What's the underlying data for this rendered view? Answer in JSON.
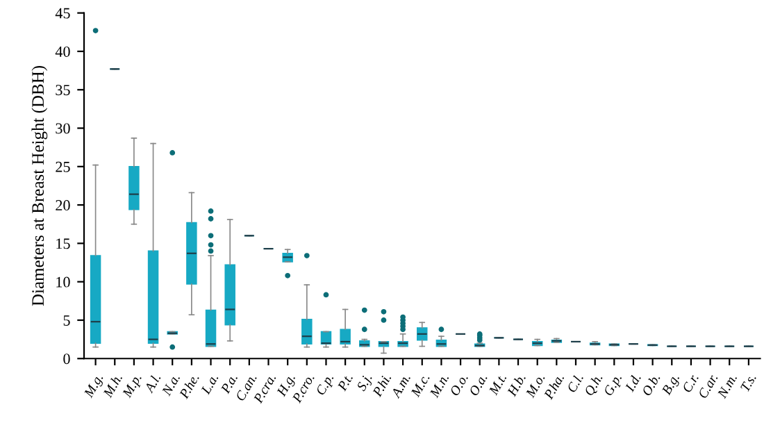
{
  "chart_data": {
    "type": "box",
    "ylabel": "Diameters at Breast Height (DBH)",
    "categories": [
      "M.g.",
      "M.h.",
      "M.p.",
      "A.l.",
      "N.a.",
      "P.he.",
      "L.a.",
      "P.a.",
      "C.an.",
      "P.cra.",
      "H.g.",
      "P.cro.",
      "C.p.",
      "P.t.",
      "S.j.",
      "P.hi.",
      "A.m.",
      "M.c.",
      "M.n.",
      "O.o.",
      "O.a.",
      "M.t.",
      "H.b.",
      "M.o.",
      "P.ha.",
      "C.l.",
      "Q.h.",
      "G.p.",
      "I.d.",
      "O.b.",
      "B.g.",
      "C.r.",
      "C.ar.",
      "N.m.",
      "T.s."
    ],
    "color": "#17a9c4",
    "ylim": [
      0,
      45
    ],
    "yticks": [
      0,
      5,
      10,
      15,
      20,
      25,
      30,
      35,
      40,
      45
    ],
    "grid": false,
    "legend": false,
    "boxes": [
      {
        "low": 1.5,
        "q1": 2,
        "median": 4.8,
        "q3": 13.4,
        "high": 25.2,
        "outliers": [
          42.7
        ]
      },
      {
        "low": 37.7,
        "q1": 37.7,
        "median": 37.7,
        "q3": 37.7,
        "high": 37.7
      },
      {
        "low": 17.5,
        "q1": 19.4,
        "median": 21.4,
        "q3": 25,
        "high": 28.7
      },
      {
        "low": 1.5,
        "q1": 2,
        "median": 2.5,
        "q3": 14,
        "high": 28
      },
      {
        "low": 3.2,
        "q1": 3.2,
        "median": 3.3,
        "q3": 3.5,
        "high": 3.5,
        "outliers": [
          1.5,
          26.8
        ]
      },
      {
        "low": 5.7,
        "q1": 9.7,
        "median": 13.7,
        "q3": 17.7,
        "high": 21.6
      },
      {
        "low": 1.6,
        "q1": 1.6,
        "median": 1.9,
        "q3": 6.3,
        "high": 13.4,
        "outliers": [
          14,
          14.8,
          16,
          18.2,
          19.2
        ]
      },
      {
        "low": 2.3,
        "q1": 4.4,
        "median": 6.4,
        "q3": 12.2,
        "high": 18.1
      },
      {
        "low": 16,
        "q1": 16,
        "median": 16,
        "q3": 16,
        "high": 16
      },
      {
        "low": 14.3,
        "q1": 14.3,
        "median": 14.3,
        "q3": 14.3,
        "high": 14.3
      },
      {
        "low": 12.6,
        "q1": 12.6,
        "median": 13.2,
        "q3": 13.7,
        "high": 14.2,
        "outliers": [
          10.8
        ]
      },
      {
        "low": 1.5,
        "q1": 1.9,
        "median": 2.9,
        "q3": 5.1,
        "high": 9.6,
        "outliers": [
          13.4
        ]
      },
      {
        "low": 1.5,
        "q1": 1.9,
        "median": 2,
        "q3": 3.5,
        "high": 3.5,
        "outliers": [
          8.3
        ]
      },
      {
        "low": 1.5,
        "q1": 1.9,
        "median": 2.2,
        "q3": 3.8,
        "high": 6.4
      },
      {
        "low": 1.6,
        "q1": 1.6,
        "median": 1.8,
        "q3": 2.3,
        "high": 2.5,
        "outliers": [
          3.8,
          6.3
        ]
      },
      {
        "low": 0.7,
        "q1": 1.6,
        "median": 2,
        "q3": 2.2,
        "high": 2.2,
        "outliers": [
          5,
          6.1
        ]
      },
      {
        "low": 1.6,
        "q1": 1.6,
        "median": 2,
        "q3": 2.2,
        "high": 3.2,
        "outliers": [
          3.8,
          4.2,
          4.6,
          5,
          5.4
        ]
      },
      {
        "low": 1.6,
        "q1": 2.4,
        "median": 3.2,
        "q3": 4,
        "high": 4.7
      },
      {
        "low": 1.6,
        "q1": 1.6,
        "median": 1.9,
        "q3": 2.4,
        "high": 2.9,
        "outliers": [
          3.8
        ]
      },
      {
        "low": 3.2,
        "q1": 3.2,
        "median": 3.2,
        "q3": 3.2,
        "high": 3.2
      },
      {
        "low": 1.6,
        "q1": 1.6,
        "median": 1.7,
        "q3": 1.9,
        "high": 2,
        "outliers": [
          2.4,
          2.7,
          3,
          3.2
        ]
      },
      {
        "low": 2.7,
        "q1": 2.7,
        "median": 2.7,
        "q3": 2.7,
        "high": 2.7
      },
      {
        "low": 2.5,
        "q1": 2.5,
        "median": 2.5,
        "q3": 2.5,
        "high": 2.5
      },
      {
        "low": 1.7,
        "q1": 1.7,
        "median": 2,
        "q3": 2.2,
        "high": 2.5
      },
      {
        "low": 2.1,
        "q1": 2.1,
        "median": 2.3,
        "q3": 2.4,
        "high": 2.6
      },
      {
        "low": 2.2,
        "q1": 2.2,
        "median": 2.2,
        "q3": 2.2,
        "high": 2.2
      },
      {
        "low": 1.8,
        "q1": 1.8,
        "median": 1.9,
        "q3": 2,
        "high": 2.2
      },
      {
        "low": 1.7,
        "q1": 1.7,
        "median": 1.8,
        "q3": 1.9,
        "high": 1.9
      },
      {
        "low": 1.9,
        "q1": 1.9,
        "median": 1.9,
        "q3": 1.9,
        "high": 1.9
      },
      {
        "low": 1.7,
        "q1": 1.7,
        "median": 1.75,
        "q3": 1.8,
        "high": 1.8
      },
      {
        "low": 1.6,
        "q1": 1.6,
        "median": 1.6,
        "q3": 1.6,
        "high": 1.6
      },
      {
        "low": 1.6,
        "q1": 1.6,
        "median": 1.6,
        "q3": 1.6,
        "high": 1.6
      },
      {
        "low": 1.6,
        "q1": 1.6,
        "median": 1.6,
        "q3": 1.6,
        "high": 1.6
      },
      {
        "low": 1.6,
        "q1": 1.6,
        "median": 1.6,
        "q3": 1.6,
        "high": 1.6
      },
      {
        "low": 1.6,
        "q1": 1.6,
        "median": 1.6,
        "q3": 1.6,
        "high": 1.6
      }
    ]
  }
}
